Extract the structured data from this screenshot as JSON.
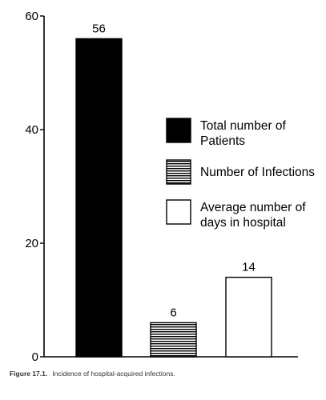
{
  "chart_data": {
    "type": "bar",
    "categories": [
      "Total number of Patients",
      "Number of Infections",
      "Average number of days in hospital"
    ],
    "values": [
      56,
      6,
      14
    ],
    "data_labels": [
      "56",
      "6",
      "14"
    ],
    "ylim": [
      0,
      60
    ],
    "yticks": [
      "0",
      "20",
      "40",
      "60"
    ],
    "legend": {
      "placement": "right",
      "entries": [
        {
          "label_lines": [
            "Total number of",
            "Patients"
          ],
          "fill": "solid-black"
        },
        {
          "label_lines": [
            "Number of Infections"
          ],
          "fill": "horizontal-stripes"
        },
        {
          "label_lines": [
            "Average number of",
            "days in hospital"
          ],
          "fill": "white"
        }
      ]
    },
    "grid": false
  },
  "caption": {
    "figure_number": "Figure 17.1.",
    "text": "Incidence of hospital-acquired infections."
  },
  "colors": {
    "bar_solid": "#000000",
    "bar_outline": "#000000",
    "bar_white": "#ffffff",
    "axis": "#000000"
  }
}
